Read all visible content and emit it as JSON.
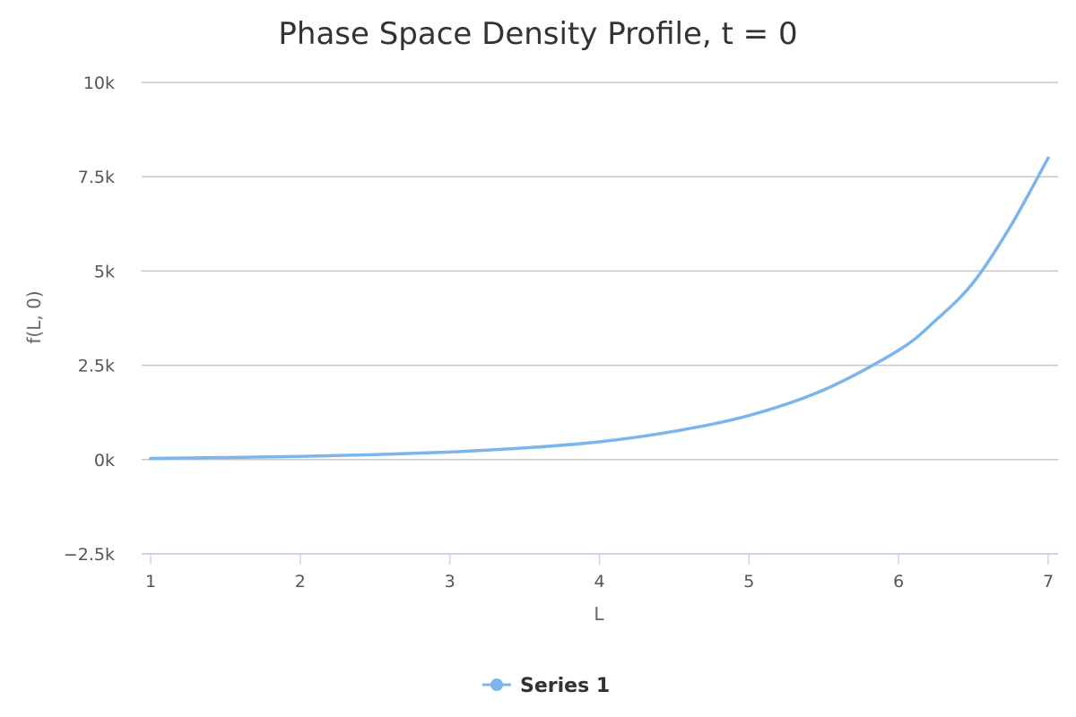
{
  "chart_data": {
    "type": "line",
    "title": "Phase Space Density Profile, t = 0",
    "xlabel": "L",
    "ylabel": "f(L, 0)",
    "xlim": [
      1,
      7
    ],
    "ylim": [
      -2500,
      10000
    ],
    "x_ticks": [
      "1",
      "2",
      "3",
      "4",
      "5",
      "6",
      "7"
    ],
    "y_ticks": [
      "10k",
      "7.5k",
      "5k",
      "2.5k",
      "0k",
      "−2.5k"
    ],
    "grid": true,
    "legend_position": "bottom-center",
    "series": [
      {
        "name": "Series 1",
        "color": "#7cb5ec",
        "x": [
          1.0,
          1.5,
          2.0,
          2.5,
          3.0,
          3.5,
          4.0,
          4.5,
          5.0,
          5.5,
          6.0,
          6.25,
          6.5,
          6.75,
          7.0
        ],
        "y": [
          30,
          55,
          85,
          130,
          200,
          310,
          470,
          750,
          1170,
          1850,
          2900,
          3700,
          4700,
          6200,
          8000
        ]
      }
    ]
  }
}
